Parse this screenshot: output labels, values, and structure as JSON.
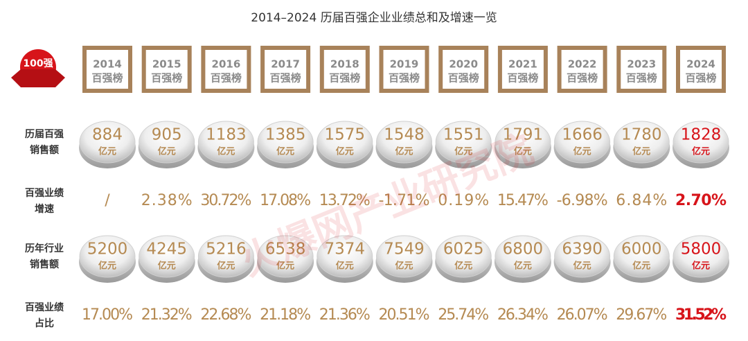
{
  "header": {
    "title": "2014–2024 历届百强企业业绩总和及增速一览",
    "logo": "100强",
    "watermark": "火爆网产业研究院"
  },
  "columns": {
    "years": [
      "2014",
      "2015",
      "2016",
      "2017",
      "2018",
      "2019",
      "2020",
      "2021",
      "2022",
      "2023",
      "2024"
    ],
    "subtitle": "百强榜"
  },
  "unit": "亿元",
  "rows": [
    {
      "label": [
        "历届百强",
        "销售额"
      ],
      "style": "disc",
      "values": [
        "884",
        "905",
        "1183",
        "1385",
        "1575",
        "1548",
        "1551",
        "1791",
        "1666",
        "1780",
        "1828"
      ]
    },
    {
      "label": [
        "百强业绩",
        "增速"
      ],
      "style": "text",
      "values": [
        "/",
        "2.38%",
        "30.72%",
        "17.08%",
        "13.72%",
        "-1.71%",
        "0.19%",
        "15.47%",
        "-6.98%",
        "6.84%",
        "2.70%"
      ]
    },
    {
      "label": [
        "历年行业",
        "销售额"
      ],
      "style": "disc",
      "values": [
        "5200",
        "4245",
        "5216",
        "6538",
        "7374",
        "7549",
        "6025",
        "6800",
        "6390",
        "6000",
        "5800"
      ]
    },
    {
      "label": [
        "百强业绩",
        "占比"
      ],
      "style": "text",
      "values": [
        "17.00%",
        "21.32%",
        "22.68%",
        "21.18%",
        "21.36%",
        "20.51%",
        "25.74%",
        "26.34%",
        "26.07%",
        "29.67%",
        "31.52%"
      ]
    }
  ]
}
